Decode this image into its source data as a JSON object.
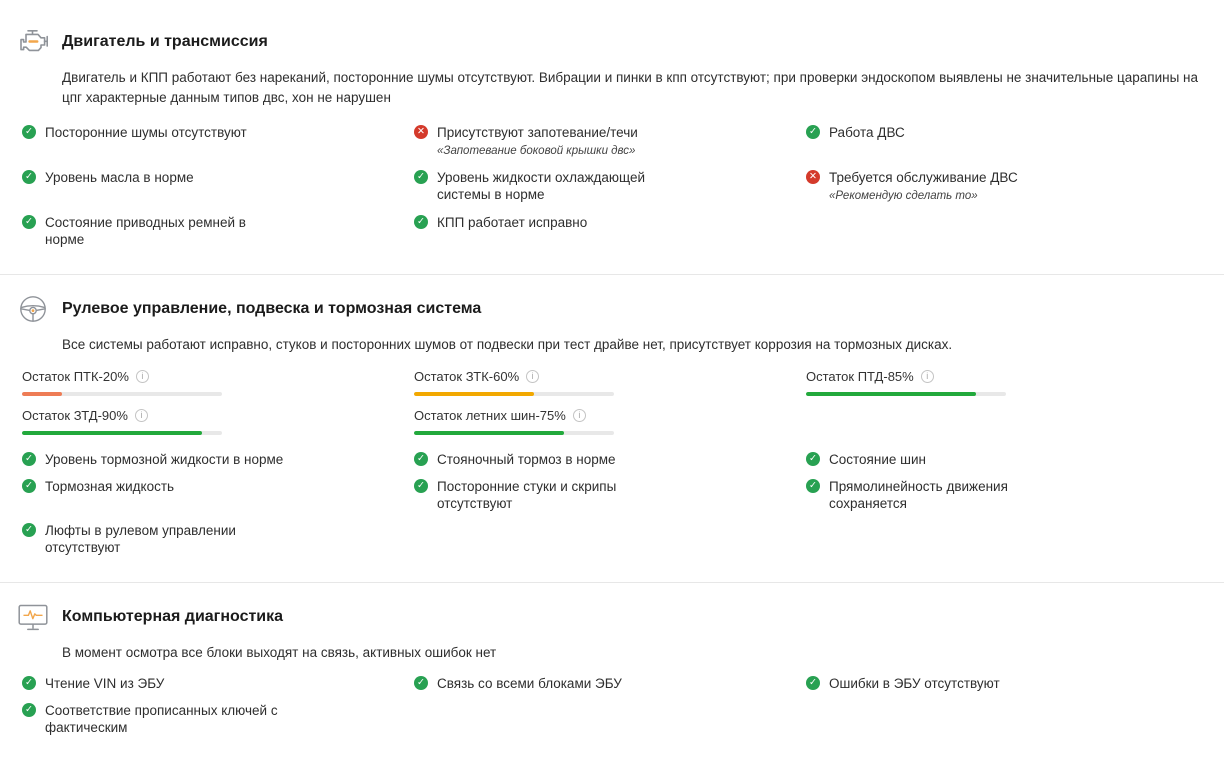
{
  "status_colors": {
    "ok": "#28a152",
    "fail": "#d43a2b"
  },
  "sections": [
    {
      "title": "Двигатель и трансмиссия",
      "icon": "engine-icon",
      "description": "Двигатель и КПП работают без нареканий, посторонние шумы отсутствуют. Вибрации и пинки в кпп отсутствуют; при проверки эндоскопом выявлены не значительные царапины на цпг характерные данным типов двс, хон не нарушен",
      "items": [
        {
          "status": "ok",
          "label": "Посторонние шумы отсутствуют"
        },
        {
          "status": "fail",
          "label": "Присутствуют запотевание/течи",
          "note": "«Запотевание боковой крышки двс»"
        },
        {
          "status": "ok",
          "label": "Работа ДВС"
        },
        {
          "status": "ok",
          "label": "Уровень масла в норме"
        },
        {
          "status": "ok",
          "label": "Уровень жидкости охлаждающей системы в норме"
        },
        {
          "status": "fail",
          "label": "Требуется обслуживание ДВС",
          "note": "«Рекомендую сделать то»"
        },
        {
          "status": "ok",
          "label": "Состояние приводных ремней в норме"
        },
        {
          "status": "ok",
          "label": "КПП работает исправно"
        }
      ]
    },
    {
      "title": "Рулевое управление, подвеска и тормозная система",
      "icon": "steering-wheel-icon",
      "description": "Все системы работают исправно, стуков и посторонних шумов от подвески при тест драйве нет, присутствует коррозия на тормозных дисках.",
      "meters": [
        {
          "label": "Остаток ПТК-20%",
          "percent": 20,
          "color": "#ee7c55"
        },
        {
          "label": "Остаток ЗТК-60%",
          "percent": 60,
          "color": "#f2a800"
        },
        {
          "label": "Остаток ПТД-85%",
          "percent": 85,
          "color": "#22a93c"
        },
        {
          "label": "Остаток ЗТД-90%",
          "percent": 90,
          "color": "#22a93c"
        },
        {
          "label": "Остаток летних шин-75%",
          "percent": 75,
          "color": "#22a93c"
        }
      ],
      "items": [
        {
          "status": "ok",
          "label": "Уровень тормозной жидкости в норме"
        },
        {
          "status": "ok",
          "label": "Стояночный тормоз в норме"
        },
        {
          "status": "ok",
          "label": "Состояние шин"
        },
        {
          "status": "ok",
          "label": "Тормозная жидкость"
        },
        {
          "status": "ok",
          "label": "Посторонние стуки и скрипы отсутствуют"
        },
        {
          "status": "ok",
          "label": "Прямолинейность движения сохраняется"
        },
        {
          "status": "ok",
          "label": "Люфты в рулевом управлении отсутствуют"
        }
      ]
    },
    {
      "title": "Компьютерная диагностика",
      "icon": "diagnostics-monitor-icon",
      "description": "В момент осмотра все блоки выходят на связь, активных ошибок нет",
      "items": [
        {
          "status": "ok",
          "label": "Чтение VIN из ЭБУ"
        },
        {
          "status": "ok",
          "label": "Связь со всеми блоками ЭБУ"
        },
        {
          "status": "ok",
          "label": "Ошибки в ЭБУ отсутствуют"
        },
        {
          "status": "ok",
          "label": "Соответствие прописанных ключей с фактическим"
        }
      ]
    }
  ],
  "info_icon_glyph": "i",
  "check_glyph": "✓",
  "cross_glyph": "✕"
}
